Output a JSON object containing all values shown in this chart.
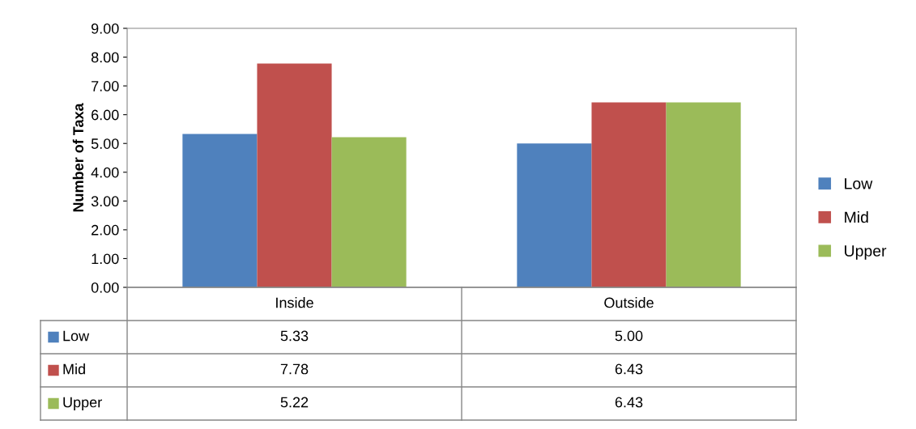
{
  "chart_data": {
    "type": "bar",
    "ylabel": "Number of Taxa",
    "categories": [
      "Inside",
      "Outside"
    ],
    "series": [
      {
        "name": "Low",
        "color": "#4f81bd",
        "values": [
          5.33,
          5.0
        ],
        "value_labels": [
          "5.33",
          "5.00"
        ]
      },
      {
        "name": "Mid",
        "color": "#c0504d",
        "values": [
          7.78,
          6.43
        ],
        "value_labels": [
          "7.78",
          "6.43"
        ]
      },
      {
        "name": "Upper",
        "color": "#9bbb59",
        "values": [
          5.22,
          6.43
        ],
        "value_labels": [
          "5.22",
          "6.43"
        ]
      }
    ],
    "ylim": [
      0,
      9
    ],
    "yticks": [
      {
        "value": 0,
        "label": "0.00"
      },
      {
        "value": 1,
        "label": "1.00"
      },
      {
        "value": 2,
        "label": "2.00"
      },
      {
        "value": 3,
        "label": "3.00"
      },
      {
        "value": 4,
        "label": "4.00"
      },
      {
        "value": 5,
        "label": "5.00"
      },
      {
        "value": 6,
        "label": "6.00"
      },
      {
        "value": 7,
        "label": "7.00"
      },
      {
        "value": 8,
        "label": "8.00"
      },
      {
        "value": 9,
        "label": "9.00"
      }
    ],
    "grid": false,
    "legend": "right"
  }
}
